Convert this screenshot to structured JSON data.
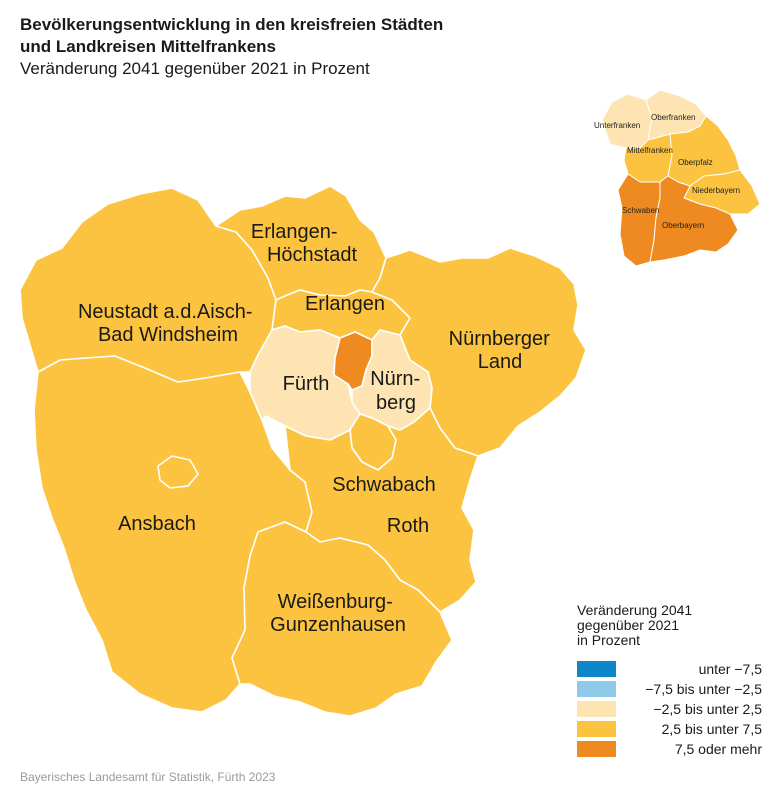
{
  "header": {
    "title_line1": "Bevölkerungsentwicklung in den kreisfreien Städten",
    "title_line2": "und Landkreisen Mittelfrankens",
    "subtitle": "Veränderung 2041 gegenüber 2021 in Prozent"
  },
  "colors": {
    "class1": "#0e87c8",
    "class2": "#8ecae8",
    "class3": "#fde4b2",
    "class4": "#fbc33f",
    "class5": "#ee8a1f",
    "border": "#ffffff"
  },
  "regions": [
    {
      "id": "neustadt",
      "class": 4,
      "label_lines": [
        "Neustadt a.d.Aisch-",
        "Bad Windsheim"
      ]
    },
    {
      "id": "erlangen-hoechstadt",
      "class": 4,
      "label_lines": [
        "Erlangen-",
        "Höchstadt"
      ]
    },
    {
      "id": "erlangen",
      "class": 4,
      "label_lines": [
        "Erlangen"
      ]
    },
    {
      "id": "nuernberger-land",
      "class": 4,
      "label_lines": [
        "Nürnberger",
        "Land"
      ]
    },
    {
      "id": "fuerth-landkreis",
      "class": 3,
      "label_lines": [
        "Fürth"
      ]
    },
    {
      "id": "fuerth-stadt",
      "class": 5,
      "label_lines": []
    },
    {
      "id": "nuernberg",
      "class": 3,
      "label_lines": [
        "Nürn-",
        "berg"
      ]
    },
    {
      "id": "schwabach",
      "class": 4,
      "label_lines": [
        "Schwabach"
      ]
    },
    {
      "id": "ansbach-landkreis",
      "class": 4,
      "label_lines": [
        "Ansbach"
      ]
    },
    {
      "id": "ansbach-stadt",
      "class": 4,
      "label_lines": []
    },
    {
      "id": "roth",
      "class": 4,
      "label_lines": [
        "Roth"
      ]
    },
    {
      "id": "weissenburg",
      "class": 4,
      "label_lines": [
        "Weißenburg-",
        "Gunzenhausen"
      ]
    }
  ],
  "inset": {
    "districts": [
      {
        "name": "Unterfranken",
        "class": 3
      },
      {
        "name": "Oberfranken",
        "class": 3
      },
      {
        "name": "Mittelfranken",
        "class": 4
      },
      {
        "name": "Oberpfalz",
        "class": 4
      },
      {
        "name": "Niederbayern",
        "class": 4
      },
      {
        "name": "Schwaben",
        "class": 5
      },
      {
        "name": "Oberbayern",
        "class": 5
      }
    ]
  },
  "legend": {
    "title_lines": [
      "Veränderung 2041",
      "gegenüber 2021",
      "in Prozent"
    ],
    "items": [
      {
        "class": 1,
        "label": "unter  −7,5"
      },
      {
        "class": 2,
        "label": "−7,5 bis unter −2,5"
      },
      {
        "class": 3,
        "label": "−2,5 bis unter   2,5"
      },
      {
        "class": 4,
        "label": "2,5 bis unter   7,5"
      },
      {
        "class": 5,
        "label": "7,5 oder mehr"
      }
    ]
  },
  "source": "Bayerisches Landesamt für Statistik, Fürth 2023"
}
